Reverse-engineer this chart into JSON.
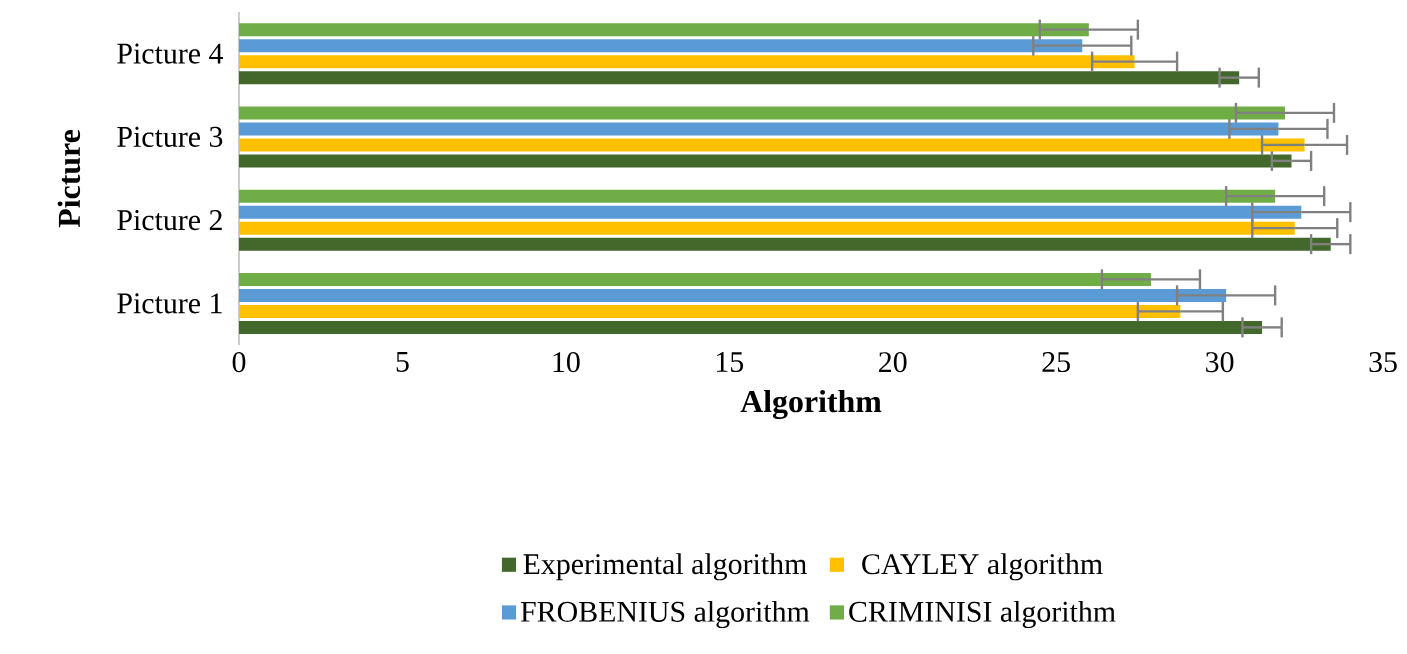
{
  "chart_data": {
    "type": "bar",
    "orientation": "horizontal",
    "xlabel": "Algorithm",
    "ylabel": "Picture",
    "categories": [
      "Picture 4",
      "Picture 3",
      "Picture 2",
      "Picture 1"
    ],
    "series": [
      {
        "name": "Experimental algorithm",
        "color": "#43682b",
        "values": [
          30.6,
          32.2,
          33.4,
          31.3
        ],
        "errors": [
          0.6,
          0.6,
          0.6,
          0.6
        ]
      },
      {
        "name": "CAYLEY algorithm",
        "color": "#ffc000",
        "values": [
          27.4,
          32.6,
          32.3,
          28.8
        ],
        "errors": [
          1.3,
          1.3,
          1.3,
          1.3
        ]
      },
      {
        "name": "FROBENIUS algorithm",
        "color": "#5b9bd5",
        "values": [
          25.8,
          31.8,
          32.5,
          30.2
        ],
        "errors": [
          1.5,
          1.5,
          1.5,
          1.5
        ]
      },
      {
        "name": "CRIMINISI algorithm",
        "color": "#70ad47",
        "values": [
          26.0,
          32.0,
          31.7,
          27.9
        ],
        "errors": [
          1.5,
          1.5,
          1.5,
          1.5
        ]
      }
    ],
    "xlim": [
      0,
      35
    ],
    "xticks": [
      0,
      5,
      10,
      15,
      20,
      25,
      30,
      35
    ],
    "legend": "bottom",
    "grid": false
  }
}
